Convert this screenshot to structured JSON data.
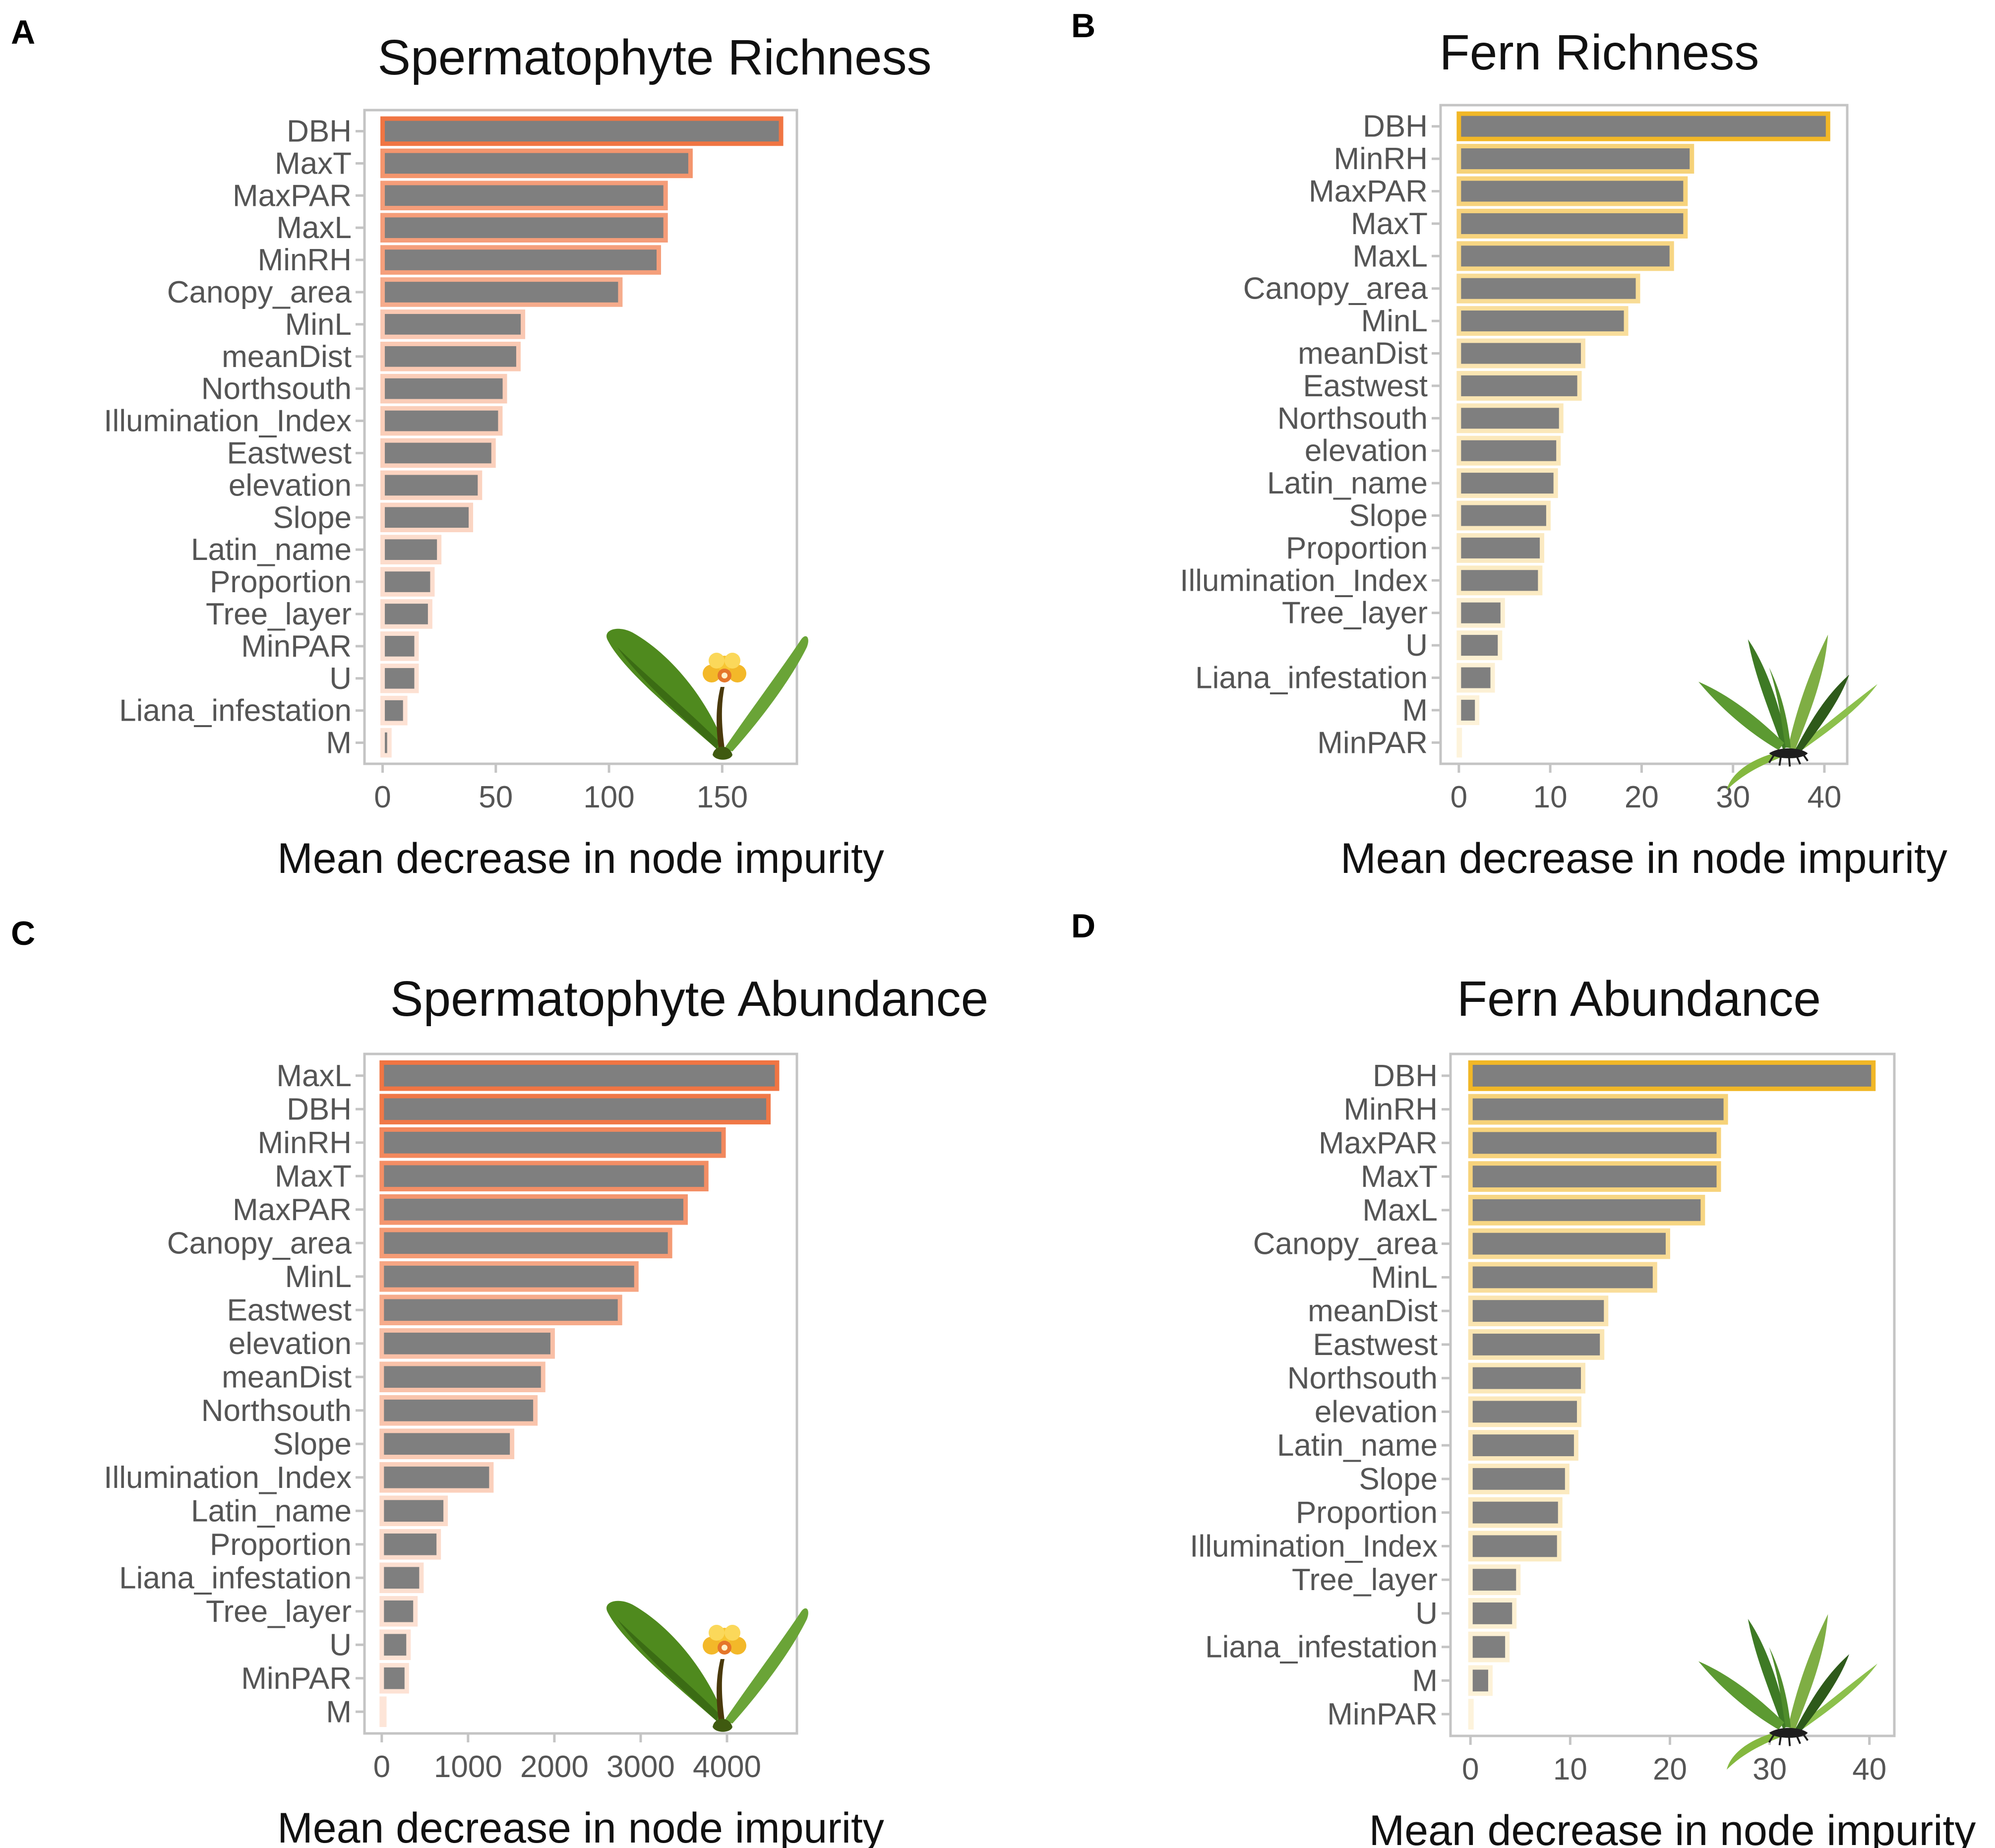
{
  "chart_data": [
    {
      "type": "bar",
      "orientation": "horizontal",
      "panel_label": "A",
      "title": "Spermatophyte Richness",
      "xlabel": "Mean decrease in node impurity",
      "ylabel": "",
      "xlim": [
        -8,
        183
      ],
      "xticks": [
        0,
        50,
        100,
        150
      ],
      "xtick_labels": [
        "0",
        "50",
        "100",
        "150"
      ],
      "bar_fill_color": "#7f7f7f",
      "outline_gradient": [
        "#fde5d8",
        "#f07543"
      ],
      "illustration": "orchid-icon",
      "categories": [
        "DBH",
        "MaxT",
        "MaxPAR",
        "MaxL",
        "MinRH",
        "Canopy_area",
        "MinL",
        "meanDist",
        "Northsouth",
        "Illumination_Index",
        "Eastwest",
        "elevation",
        "Slope",
        "Latin_name",
        "Proportion",
        "Tree_layer",
        "MinPAR",
        "U",
        "Liana_infestation",
        "M"
      ],
      "values": [
        176,
        136,
        125,
        125,
        122,
        105,
        62,
        60,
        54,
        52,
        49,
        43,
        39,
        25,
        22,
        21,
        15,
        15,
        10,
        3
      ]
    },
    {
      "type": "bar",
      "orientation": "horizontal",
      "panel_label": "B",
      "title": "Fern Richness",
      "xlabel": "Mean decrease in node impurity",
      "ylabel": "",
      "xlim": [
        -2,
        42.5
      ],
      "xticks": [
        0,
        10,
        20,
        30,
        40
      ],
      "xtick_labels": [
        "0",
        "10",
        "20",
        "30",
        "40"
      ],
      "bar_fill_color": "#7f7f7f",
      "outline_gradient": [
        "#fdf3dc",
        "#f1b727"
      ],
      "illustration": "fern-icon",
      "categories": [
        "DBH",
        "MinRH",
        "MaxPAR",
        "MaxT",
        "MaxL",
        "Canopy_area",
        "MinL",
        "meanDist",
        "Eastwest",
        "Northsouth",
        "elevation",
        "Latin_name",
        "Slope",
        "Proportion",
        "Illumination_Index",
        "Tree_layer",
        "U",
        "Liana_infestation",
        "M",
        "MinPAR"
      ],
      "values": [
        40.4,
        25.5,
        24.8,
        24.8,
        23.3,
        19.6,
        18.3,
        13.6,
        13.2,
        11.2,
        10.9,
        10.6,
        9.8,
        9.1,
        8.9,
        4.8,
        4.5,
        3.7,
        2.0,
        0.1
      ]
    },
    {
      "type": "bar",
      "orientation": "horizontal",
      "panel_label": "C",
      "title": "Spermatophyte Abundance",
      "xlabel": "Mean decrease in node impurity",
      "ylabel": "",
      "xlim": [
        -200,
        4810
      ],
      "xticks": [
        0,
        1000,
        2000,
        3000,
        4000
      ],
      "xtick_labels": [
        "0",
        "1000",
        "2000",
        "3000",
        "4000"
      ],
      "bar_fill_color": "#7f7f7f",
      "outline_gradient": [
        "#fde5d8",
        "#f07543"
      ],
      "illustration": "orchid-icon",
      "categories": [
        "MaxL",
        "DBH",
        "MinRH",
        "MaxT",
        "MaxPAR",
        "Canopy_area",
        "MinL",
        "Eastwest",
        "elevation",
        "meanDist",
        "Northsouth",
        "Slope",
        "Illumination_Index",
        "Latin_name",
        "Proportion",
        "Liana_infestation",
        "Tree_layer",
        "U",
        "MinPAR",
        "M"
      ],
      "values": [
        4580,
        4480,
        3960,
        3760,
        3520,
        3340,
        2950,
        2760,
        1980,
        1870,
        1780,
        1510,
        1270,
        740,
        660,
        460,
        390,
        310,
        290,
        30
      ]
    },
    {
      "type": "bar",
      "orientation": "horizontal",
      "panel_label": "D",
      "title": "Fern Abundance",
      "xlabel": "Mean decrease in node impurity",
      "ylabel": "",
      "xlim": [
        -2,
        42.5
      ],
      "xticks": [
        0,
        10,
        20,
        30,
        40
      ],
      "xtick_labels": [
        "0",
        "10",
        "20",
        "30",
        "40"
      ],
      "bar_fill_color": "#7f7f7f",
      "outline_gradient": [
        "#fdf3dc",
        "#f1b727"
      ],
      "illustration": "fern-icon",
      "categories": [
        "DBH",
        "MinRH",
        "MaxPAR",
        "MaxT",
        "MaxL",
        "Canopy_area",
        "MinL",
        "meanDist",
        "Eastwest",
        "Northsouth",
        "elevation",
        "Latin_name",
        "Slope",
        "Proportion",
        "Illumination_Index",
        "Tree_layer",
        "U",
        "Liana_infestation",
        "M",
        "MinPAR"
      ],
      "values": [
        40.4,
        25.6,
        24.9,
        24.9,
        23.3,
        19.8,
        18.5,
        13.6,
        13.2,
        11.3,
        10.9,
        10.6,
        9.7,
        9.0,
        8.9,
        4.8,
        4.4,
        3.7,
        2.0,
        0.1
      ]
    }
  ]
}
